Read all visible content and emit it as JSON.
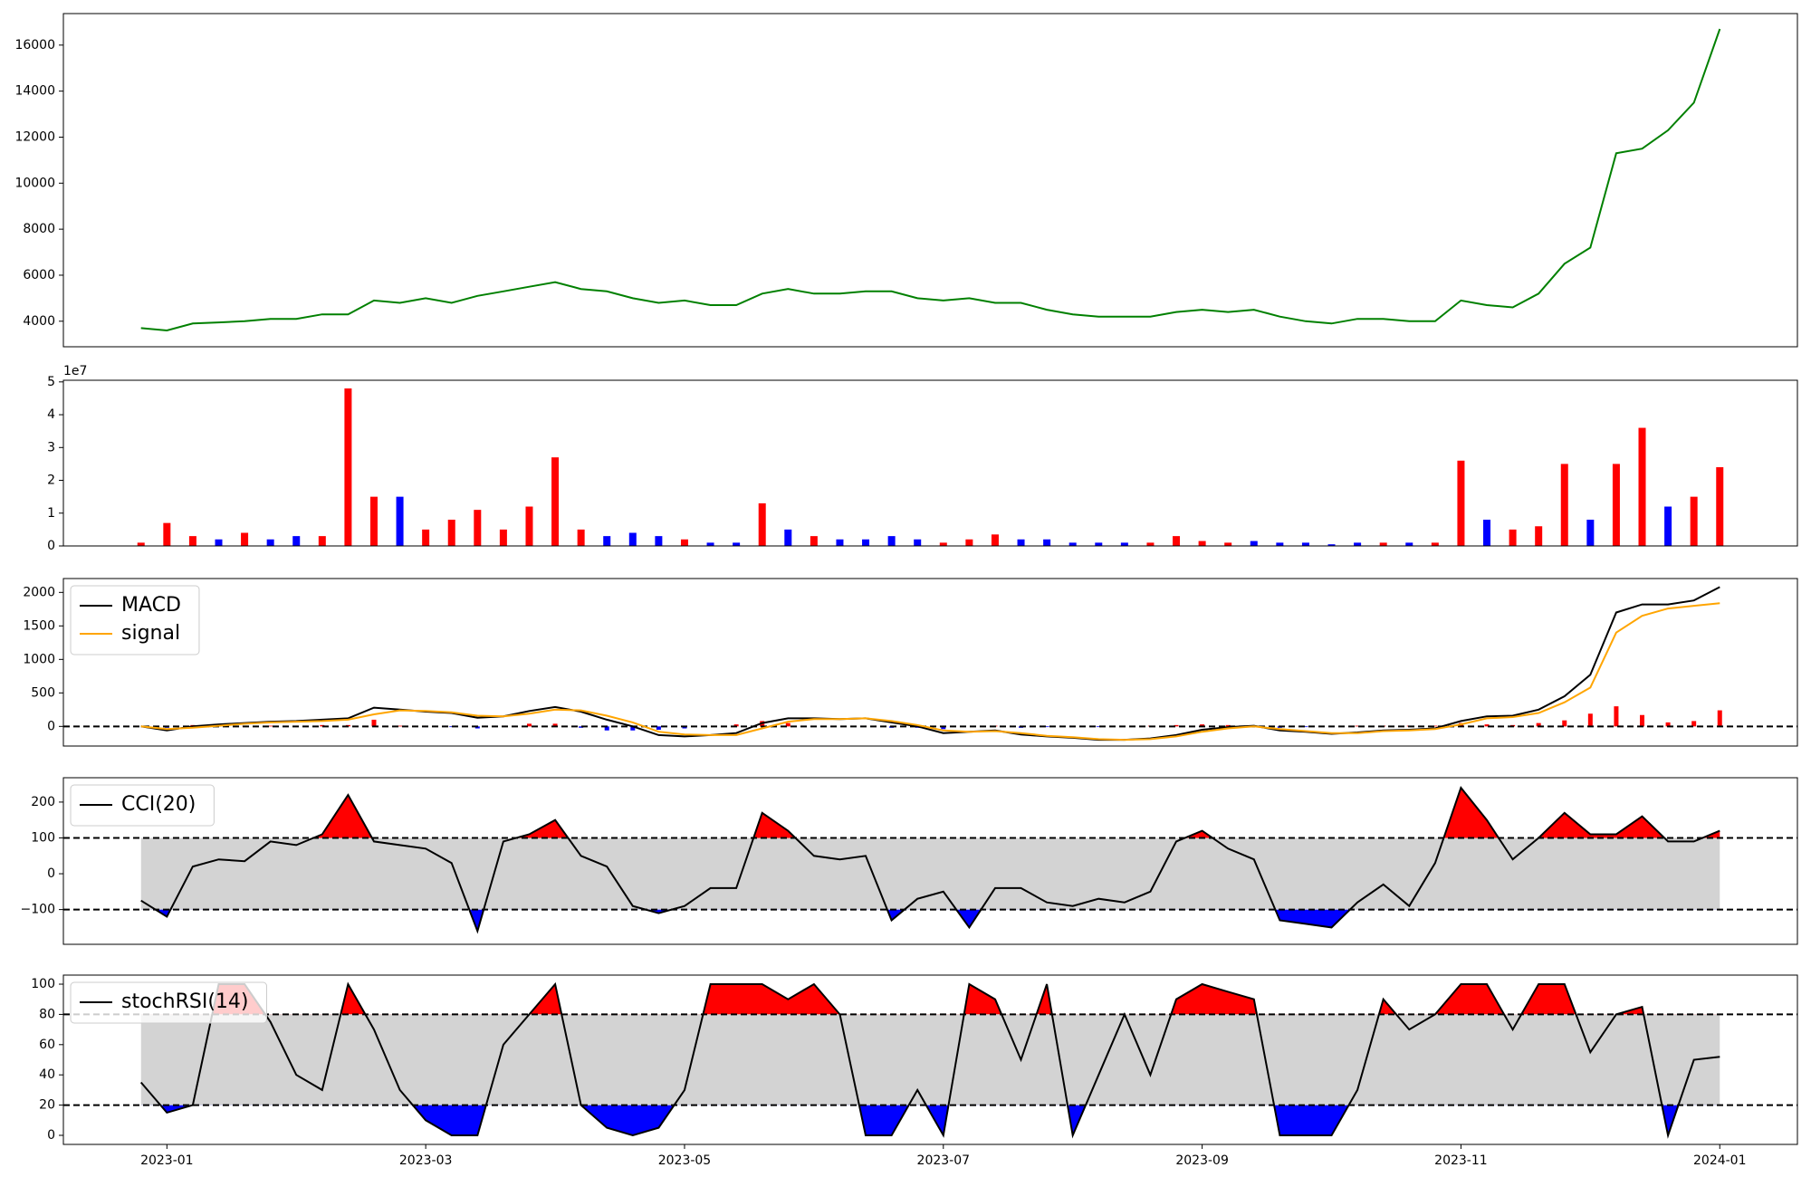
{
  "chart_data": {
    "type": "panels",
    "x": [
      0.8,
      1,
      1.2,
      1.4,
      1.6,
      1.8,
      2,
      2.2,
      2.4,
      2.6,
      2.8,
      3,
      3.2,
      3.4,
      3.6,
      3.8,
      4,
      4.2,
      4.4,
      4.6,
      4.8,
      5,
      5.2,
      5.4,
      5.6,
      5.8,
      6,
      6.2,
      6.4,
      6.6,
      6.8,
      7,
      7.2,
      7.4,
      7.6,
      7.8,
      8,
      8.2,
      8.4,
      8.6,
      8.8,
      9,
      9.2,
      9.4,
      9.6,
      9.8,
      10,
      10.2,
      10.4,
      10.6,
      10.8,
      11,
      11.2,
      11.4,
      11.6,
      11.8,
      12,
      12.2,
      12.4,
      12.6,
      12.8,
      13
    ],
    "xlim": [
      0.2,
      13.6
    ],
    "xticks": [
      {
        "value": 1,
        "label": "2023-01"
      },
      {
        "value": 3,
        "label": "2023-03"
      },
      {
        "value": 5,
        "label": "2023-05"
      },
      {
        "value": 7,
        "label": "2023-07"
      },
      {
        "value": 9,
        "label": "2023-09"
      },
      {
        "value": 11,
        "label": "2023-11"
      },
      {
        "value": 13,
        "label": "2024-01"
      }
    ],
    "panels": [
      {
        "type": "line",
        "color": "green",
        "values": [
          3700,
          3600,
          3900,
          3950,
          4000,
          4100,
          4100,
          4300,
          4300,
          4900,
          4800,
          5000,
          4800,
          5100,
          5300,
          5500,
          5700,
          5400,
          5300,
          5000,
          4800,
          4900,
          4700,
          4700,
          5200,
          5400,
          5200,
          5200,
          5300,
          5300,
          5000,
          4900,
          5000,
          4800,
          4800,
          4500,
          4300,
          4200,
          4200,
          4200,
          4400,
          4500,
          4400,
          4500,
          4200,
          4000,
          3900,
          4100,
          4100,
          4000,
          4000,
          4900,
          4700,
          4600,
          5200,
          6500,
          7200,
          11300,
          11500,
          12300,
          13500,
          16700
        ],
        "ylim": [
          2890,
          17370
        ],
        "yticks": [
          4000,
          6000,
          8000,
          10000,
          12000,
          14000,
          16000
        ]
      },
      {
        "type": "bar",
        "offset_label": "1e7",
        "values": [
          0.1,
          0.7,
          0.3,
          0.2,
          0.4,
          0.2,
          0.3,
          0.3,
          4.8,
          1.5,
          1.5,
          0.5,
          0.8,
          1.1,
          0.5,
          1.2,
          2.7,
          0.5,
          0.3,
          0.4,
          0.3,
          0.2,
          0.1,
          0.1,
          1.3,
          0.5,
          0.3,
          0.2,
          0.2,
          0.3,
          0.2,
          0.1,
          0.2,
          0.35,
          0.2,
          0.2,
          0.1,
          0.1,
          0.1,
          0.1,
          0.3,
          0.15,
          0.1,
          0.15,
          0.1,
          0.1,
          0.05,
          0.1,
          0.1,
          0.1,
          0.1,
          2.6,
          0.8,
          0.5,
          0.6,
          2.5,
          0.8,
          2.5,
          3.6,
          1.2,
          1.5,
          2.4
        ],
        "colors": [
          "red",
          "red",
          "red",
          "blue",
          "red",
          "blue",
          "blue",
          "red",
          "red",
          "red",
          "blue",
          "red",
          "red",
          "red",
          "red",
          "red",
          "red",
          "red",
          "blue",
          "blue",
          "blue",
          "red",
          "blue",
          "blue",
          "red",
          "blue",
          "red",
          "blue",
          "blue",
          "blue",
          "blue",
          "red",
          "red",
          "red",
          "blue",
          "blue",
          "blue",
          "blue",
          "blue",
          "red",
          "red",
          "red",
          "red",
          "blue",
          "blue",
          "blue",
          "blue",
          "blue",
          "red",
          "blue",
          "red",
          "red",
          "blue",
          "red",
          "red",
          "red",
          "blue",
          "red",
          "red",
          "blue",
          "red",
          "red"
        ],
        "ylim": [
          0,
          5.05
        ],
        "yticks": [
          0,
          1,
          2,
          3,
          4,
          5
        ]
      },
      {
        "type": "macd",
        "series": [
          {
            "name": "MACD",
            "color": "black",
            "values": [
              0,
              -60,
              0,
              30,
              50,
              70,
              80,
              100,
              120,
              280,
              250,
              220,
              200,
              130,
              150,
              230,
              290,
              220,
              100,
              0,
              -130,
              -150,
              -130,
              -100,
              50,
              120,
              120,
              110,
              120,
              60,
              0,
              -100,
              -80,
              -60,
              -120,
              -150,
              -170,
              -200,
              -200,
              -180,
              -130,
              -50,
              -10,
              10,
              -60,
              -80,
              -110,
              -90,
              -60,
              -50,
              -30,
              80,
              150,
              160,
              250,
              450,
              770,
              1700,
              1820,
              1820,
              1880,
              2080
            ]
          },
          {
            "name": "signal",
            "color": "orange",
            "values": [
              0,
              -40,
              -20,
              10,
              40,
              60,
              70,
              80,
              100,
              180,
              240,
              230,
              210,
              160,
              150,
              190,
              250,
              240,
              160,
              60,
              -80,
              -120,
              -130,
              -130,
              -30,
              70,
              110,
              110,
              120,
              80,
              20,
              -60,
              -80,
              -70,
              -100,
              -140,
              -160,
              -190,
              -200,
              -190,
              -150,
              -80,
              -30,
              0,
              -40,
              -70,
              -100,
              -100,
              -70,
              -60,
              -40,
              30,
              120,
              140,
              200,
              360,
              580,
              1400,
              1650,
              1760,
              1800,
              1840
            ]
          }
        ],
        "histogram": {
          "values": [
            0,
            -20,
            20,
            20,
            10,
            10,
            10,
            20,
            20,
            100,
            10,
            -10,
            -10,
            -30,
            0,
            40,
            40,
            -20,
            -60,
            -60,
            -50,
            -30,
            0,
            30,
            80,
            50,
            10,
            0,
            0,
            -20,
            -20,
            -40,
            0,
            10,
            -20,
            -10,
            -10,
            -10,
            0,
            10,
            20,
            30,
            20,
            10,
            -20,
            -10,
            -10,
            10,
            10,
            10,
            10,
            50,
            30,
            20,
            50,
            90,
            190,
            300,
            170,
            60,
            80,
            240
          ],
          "pos_color": "red",
          "neg_color": "blue"
        },
        "reference_lines": [
          0
        ],
        "ylim": [
          -293,
          2207
        ],
        "yticks": [
          0,
          500,
          1000,
          1500,
          2000
        ]
      },
      {
        "type": "band",
        "series": [
          {
            "name": "CCI(20)",
            "color": "black",
            "values": [
              -75,
              -120,
              20,
              40,
              35,
              90,
              80,
              110,
              220,
              90,
              80,
              70,
              30,
              -160,
              90,
              110,
              150,
              50,
              20,
              -90,
              -110,
              -90,
              -40,
              -40,
              170,
              120,
              50,
              40,
              50,
              -130,
              -70,
              -50,
              -150,
              -40,
              -40,
              -80,
              -90,
              -70,
              -80,
              -50,
              90,
              120,
              70,
              40,
              -130,
              -140,
              -150,
              -80,
              -30,
              -90,
              30,
              240,
              150,
              40,
              100,
              170,
              110,
              110,
              160,
              90,
              90,
              120
            ]
          }
        ],
        "band": [
          -100,
          100
        ],
        "band_color": "lightgray",
        "upper_color": "red",
        "lower_color": "blue",
        "ylim": [
          -197,
          268
        ],
        "yticks": [
          {
            "value": -100,
            "label": "−100"
          },
          0,
          100,
          200
        ]
      },
      {
        "type": "band",
        "series": [
          {
            "name": "stochRSI(14)",
            "color": "black",
            "values": [
              35,
              15,
              20,
              100,
              100,
              75,
              40,
              30,
              100,
              70,
              30,
              10,
              0,
              0,
              60,
              80,
              100,
              20,
              5,
              0,
              5,
              30,
              100,
              100,
              100,
              90,
              100,
              80,
              0,
              0,
              30,
              0,
              100,
              90,
              50,
              100,
              0,
              40,
              80,
              40,
              90,
              100,
              95,
              90,
              0,
              0,
              0,
              30,
              90,
              70,
              80,
              100,
              100,
              70,
              100,
              100,
              55,
              80,
              85,
              0,
              50,
              52
            ]
          }
        ],
        "band": [
          20,
          80
        ],
        "band_color": "lightgray",
        "upper_color": "red",
        "lower_color": "blue",
        "ylim": [
          -6,
          106
        ],
        "yticks": [
          0,
          20,
          40,
          60,
          80,
          100
        ]
      }
    ]
  }
}
